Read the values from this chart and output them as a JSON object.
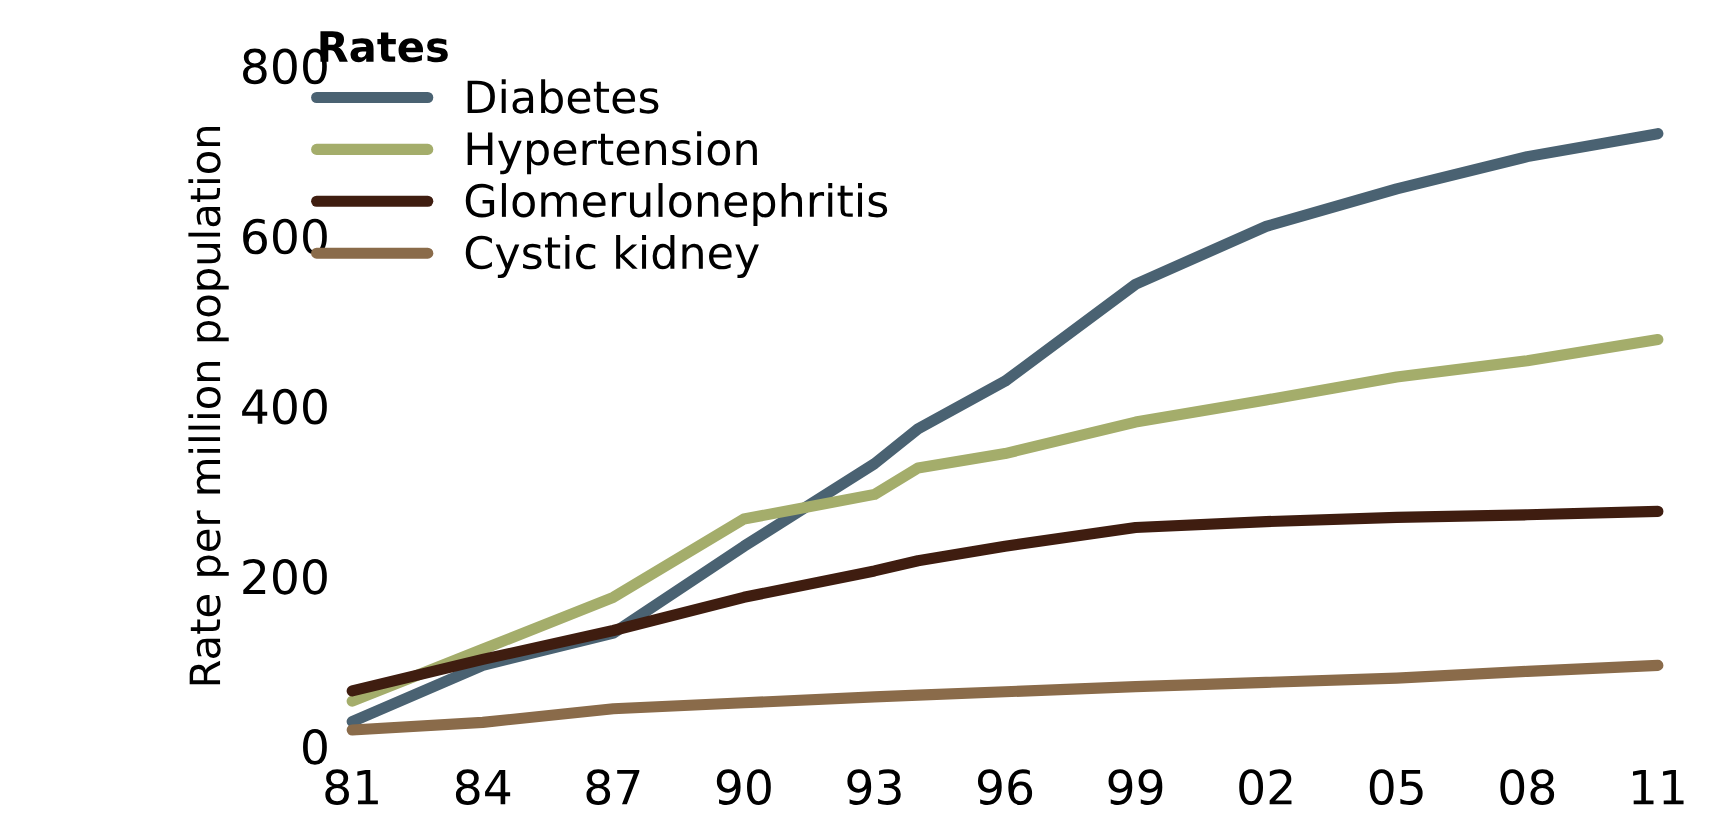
{
  "chart_data": {
    "type": "line",
    "ylabel": "Rate per million population",
    "legend_title": "Rates",
    "legend": "top left",
    "grid": false,
    "x": [
      1981,
      1984,
      1987,
      1990,
      1993,
      1994,
      1996,
      1999,
      2002,
      2005,
      2008,
      2011
    ],
    "xlim": [
      1981,
      2011
    ],
    "xticks": [
      {
        "value": 1981,
        "label": "81"
      },
      {
        "value": 1984,
        "label": "84"
      },
      {
        "value": 1987,
        "label": "87"
      },
      {
        "value": 1990,
        "label": "90"
      },
      {
        "value": 1993,
        "label": "93"
      },
      {
        "value": 1996,
        "label": "96"
      },
      {
        "value": 1999,
        "label": "99"
      },
      {
        "value": 2002,
        "label": "02"
      },
      {
        "value": 2005,
        "label": "05"
      },
      {
        "value": 2008,
        "label": "08"
      },
      {
        "value": 2011,
        "label": "11"
      }
    ],
    "ylim": [
      0,
      800
    ],
    "yticks": [
      0,
      200,
      400,
      600,
      800
    ],
    "series": [
      {
        "name": "Diabetes",
        "color": "#4a6272",
        "values": [
          29,
          95,
          133,
          235,
          332,
          373,
          429,
          543,
          611,
          655,
          693,
          720
        ]
      },
      {
        "name": "Hypertension",
        "color": "#a4ad6b",
        "values": [
          53,
          114,
          175,
          267,
          296,
          327,
          344,
          381,
          407,
          434,
          453,
          478
        ]
      },
      {
        "name": "Glomerulonephritis",
        "color": "#3f1d10",
        "values": [
          65,
          102,
          136,
          175,
          206,
          218,
          235,
          257,
          264,
          269,
          272,
          276
        ]
      },
      {
        "name": "Cystic kidney",
        "color": "#8a6b4a",
        "values": [
          19,
          28,
          44,
          51,
          58,
          60,
          64,
          70,
          75,
          80,
          88,
          95
        ]
      }
    ]
  }
}
